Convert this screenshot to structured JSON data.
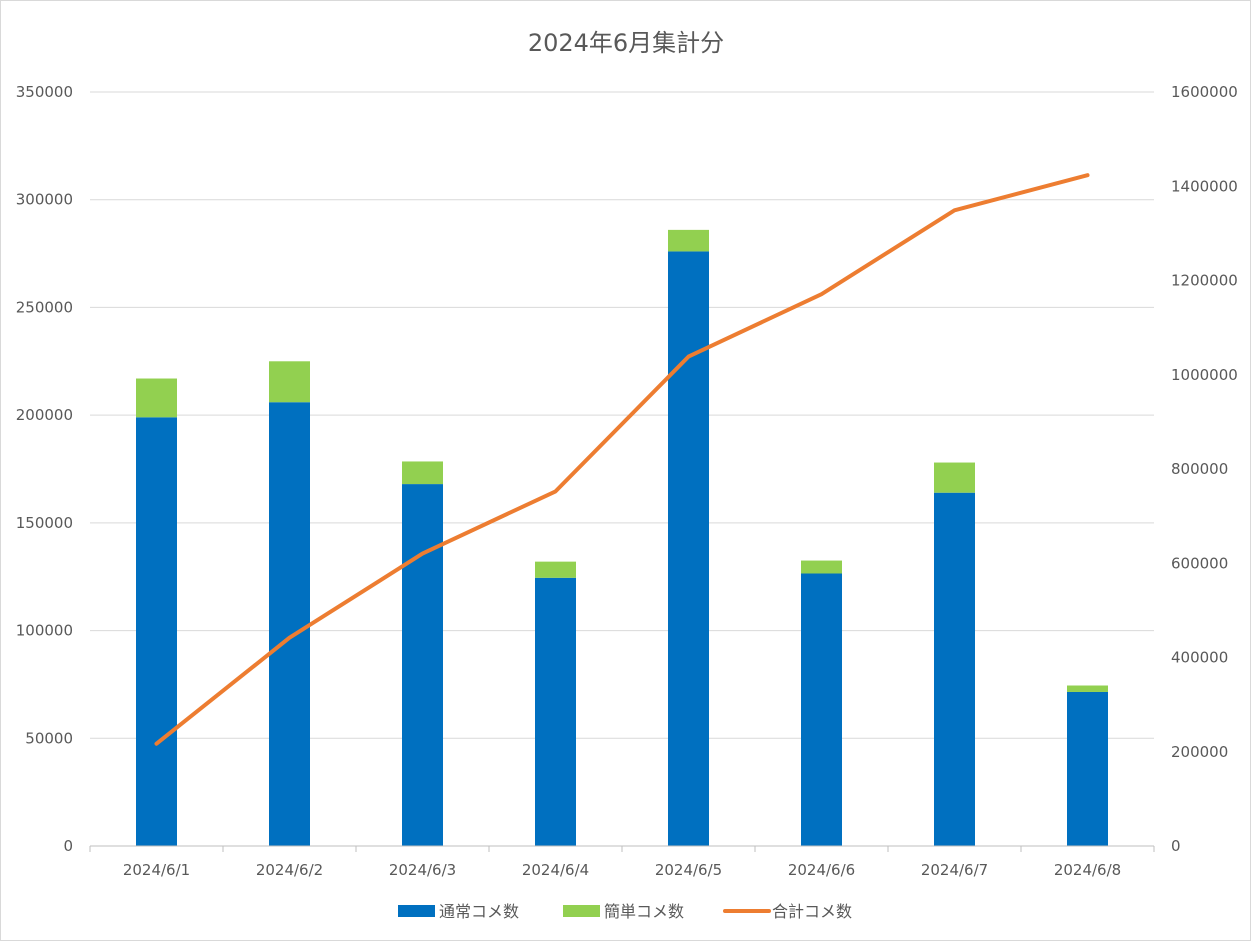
{
  "chart_data": {
    "type": "bar",
    "stacked": true,
    "title": "2024年6月集計分",
    "categories": [
      "2024/6/1",
      "2024/6/2",
      "2024/6/3",
      "2024/6/4",
      "2024/6/5",
      "2024/6/6",
      "2024/6/7",
      "2024/6/8"
    ],
    "series": [
      {
        "name": "通常コメ数",
        "type": "bar",
        "axis": "left",
        "color": "#0070c0",
        "values": [
          199000,
          206000,
          168000,
          124500,
          276000,
          126500,
          164000,
          71500
        ]
      },
      {
        "name": "簡単コメ数",
        "type": "bar",
        "axis": "left",
        "color": "#92d050",
        "values": [
          18000,
          19000,
          10500,
          7500,
          10000,
          6000,
          14000,
          3000
        ]
      },
      {
        "name": "合計コメ数",
        "type": "line",
        "axis": "right",
        "color": "#ed7d31",
        "values": [
          217000,
          442000,
          620500,
          752500,
          1038500,
          1171000,
          1349000,
          1423500
        ]
      }
    ],
    "ylim_left": [
      0,
      350000
    ],
    "ylim_right": [
      0,
      1600000
    ],
    "yticks_left": [
      "0",
      "50000",
      "100000",
      "150000",
      "200000",
      "250000",
      "300000",
      "350000"
    ],
    "yticks_right": [
      "0",
      "200000",
      "400000",
      "600000",
      "800000",
      "1000000",
      "1200000",
      "1400000",
      "1600000"
    ],
    "grid": true,
    "legend_position": "bottom"
  }
}
